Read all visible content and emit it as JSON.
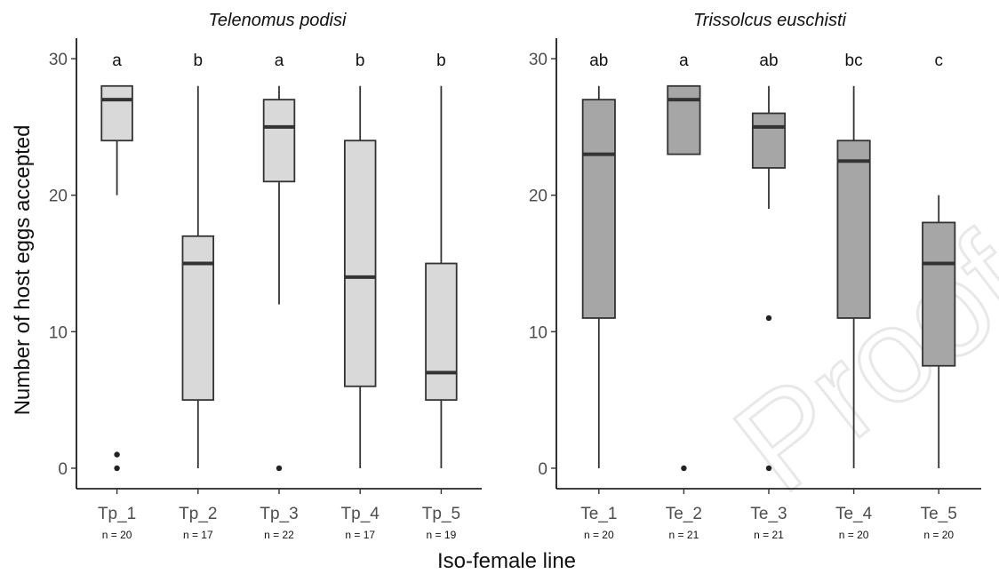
{
  "chart_data": {
    "type": "boxplot",
    "ylabel": "Number of host eggs accepted",
    "xlabel": "Iso-female line",
    "ylim": [
      -1.5,
      31.5
    ],
    "yticks": [
      0,
      10,
      20,
      30
    ],
    "grid": false,
    "watermark": "Proof",
    "colors": {
      "panel1_fill": "#d9d9d9",
      "panel2_fill": "#a6a6a6",
      "stroke": "#333333"
    },
    "panels": [
      {
        "title": "Telenomus podisi",
        "boxes": [
          {
            "label": "Tp_1",
            "n": "n = 20",
            "letter": "a",
            "min": 20,
            "q1": 24,
            "median": 27,
            "q3": 28,
            "max": 28,
            "outliers": [
              0,
              1
            ]
          },
          {
            "label": "Tp_2",
            "n": "n = 17",
            "letter": "b",
            "min": 0,
            "q1": 5,
            "median": 15,
            "q3": 17,
            "max": 28,
            "outliers": []
          },
          {
            "label": "Tp_3",
            "n": "n = 22",
            "letter": "a",
            "min": 12,
            "q1": 21,
            "median": 25,
            "q3": 27,
            "max": 28,
            "outliers": [
              0
            ]
          },
          {
            "label": "Tp_4",
            "n": "n = 17",
            "letter": "b",
            "min": 0,
            "q1": 6,
            "median": 14,
            "q3": 24,
            "max": 28,
            "outliers": []
          },
          {
            "label": "Tp_5",
            "n": "n = 19",
            "letter": "b",
            "min": 0,
            "q1": 5,
            "median": 7,
            "q3": 15,
            "max": 28,
            "outliers": []
          }
        ]
      },
      {
        "title": "Trissolcus euschisti",
        "boxes": [
          {
            "label": "Te_1",
            "n": "n = 20",
            "letter": "ab",
            "min": 0,
            "q1": 11,
            "median": 23,
            "q3": 27,
            "max": 28,
            "outliers": []
          },
          {
            "label": "Te_2",
            "n": "n = 21",
            "letter": "a",
            "min": 23,
            "q1": 23,
            "median": 27,
            "q3": 28,
            "max": 28,
            "outliers": [
              0
            ]
          },
          {
            "label": "Te_3",
            "n": "n = 21",
            "letter": "ab",
            "min": 19,
            "q1": 22,
            "median": 25,
            "q3": 26,
            "max": 28,
            "outliers": [
              0,
              11
            ]
          },
          {
            "label": "Te_4",
            "n": "n = 20",
            "letter": "bc",
            "min": 0,
            "q1": 11,
            "median": 22.5,
            "q3": 24,
            "max": 28,
            "outliers": []
          },
          {
            "label": "Te_5",
            "n": "n = 20",
            "letter": "c",
            "min": 0,
            "q1": 7.5,
            "median": 15,
            "q3": 18,
            "max": 20,
            "outliers": []
          }
        ]
      }
    ]
  }
}
